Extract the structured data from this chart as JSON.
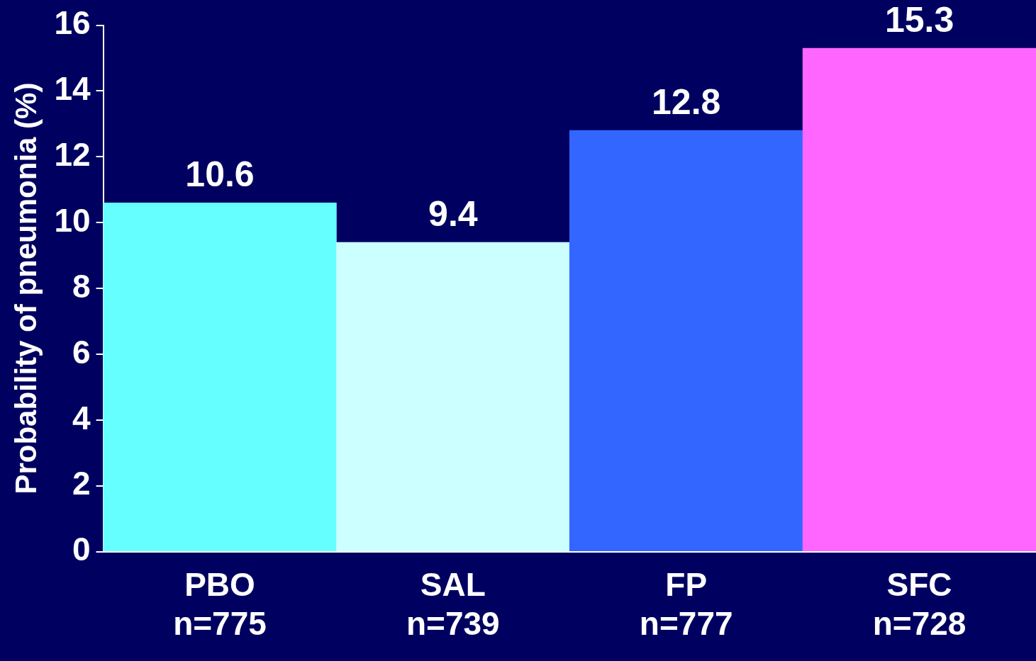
{
  "chart_data": {
    "type": "bar",
    "ylabel": "Probability of pneumonia (%)",
    "categories": [
      "PBO\nn=775",
      "SAL\nn=739",
      "FP\nn=777",
      "SFC\nn=728"
    ],
    "values": [
      10.6,
      9.4,
      12.8,
      15.3
    ],
    "colors": [
      "#66ffff",
      "#ccffff",
      "#3366ff",
      "#ff66ff"
    ],
    "ylim": [
      0,
      16
    ],
    "yticks": [
      0,
      2,
      4,
      6,
      8,
      10,
      12,
      14,
      16
    ],
    "grid": false,
    "legend": false,
    "data_labels": true
  }
}
